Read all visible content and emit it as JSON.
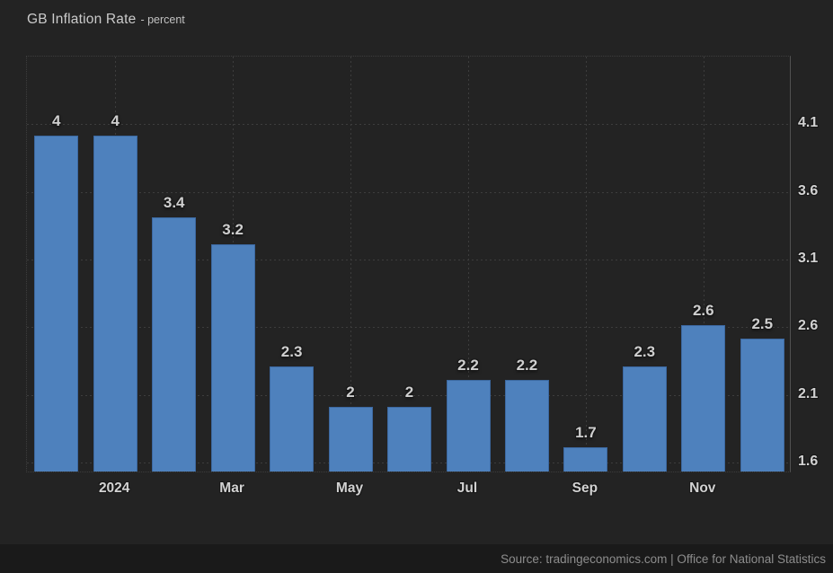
{
  "header": {
    "title": "GB Inflation Rate",
    "subtitle": "- percent"
  },
  "footer": {
    "source": "Source: tradingeconomics.com | Office for National Statistics"
  },
  "colors": {
    "background": "#232323",
    "bar_fill": "#4e81bd",
    "bar_border": "#3c68a0",
    "grid": "#3d3d3d",
    "axis_line": "#515151",
    "value_label": "#cfcfcf",
    "tick_label": "#d2d2d2",
    "footer_bg": "#1a1a1a",
    "footer_text": "#8d8d8d"
  },
  "chart_data": {
    "type": "bar",
    "title": "GB Inflation Rate",
    "ylabel": "percent",
    "values": [
      4,
      4,
      3.4,
      3.2,
      2.3,
      2,
      2,
      2.2,
      2.2,
      1.7,
      2.3,
      2.6,
      2.5
    ],
    "bar_labels": [
      "4",
      "4",
      "3.4",
      "3.2",
      "2.3",
      "2",
      "2",
      "2.2",
      "2.2",
      "1.7",
      "2.3",
      "2.6",
      "2.5"
    ],
    "x_ticks": [
      {
        "slot": 1,
        "label": "2024"
      },
      {
        "slot": 3,
        "label": "Mar"
      },
      {
        "slot": 5,
        "label": "May"
      },
      {
        "slot": 7,
        "label": "Jul"
      },
      {
        "slot": 9,
        "label": "Sep"
      },
      {
        "slot": 11,
        "label": "Nov"
      }
    ],
    "y_ticks": [
      4.1,
      3.6,
      3.1,
      2.6,
      2.1,
      1.6
    ],
    "ylim": [
      1.52,
      4.6
    ],
    "grid": "dotted",
    "legend": "none",
    "y_axis_side": "right"
  }
}
